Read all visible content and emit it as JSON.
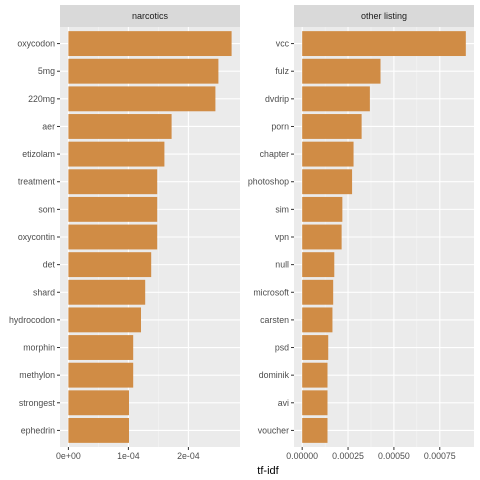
{
  "chart_data": [
    {
      "type": "bar",
      "orientation": "horizontal",
      "facet_label": "narcotics",
      "categories": [
        "oxycodon",
        "5mg",
        "220mg",
        "aer",
        "etizolam",
        "treatment",
        "som",
        "oxycontin",
        "det",
        "shard",
        "hydrocodon",
        "morphin",
        "methylon",
        "strongest",
        "ephedrin"
      ],
      "values": [
        0.000272,
        0.00025,
        0.000245,
        0.000172,
        0.00016,
        0.000148,
        0.000148,
        0.000148,
        0.000138,
        0.000128,
        0.000121,
        0.000108,
        0.000108,
        0.000101,
        0.000101
      ],
      "xlim": [
        -1.4e-05,
        0.000286
      ],
      "ticks": [
        0,
        0.0001,
        0.0002
      ],
      "tick_labels": [
        "0e+00",
        "1e-04",
        "2e-04"
      ]
    },
    {
      "type": "bar",
      "orientation": "horizontal",
      "facet_label": "other listing",
      "categories": [
        "vcc",
        "fulz",
        "dvdrip",
        "porn",
        "chapter",
        "photoshop",
        "sim",
        "vpn",
        "null",
        "microsoft",
        "carsten",
        "psd",
        "dominik",
        "avi",
        "voucher"
      ],
      "values": [
        0.000892,
        0.000427,
        0.000369,
        0.000324,
        0.00028,
        0.000272,
        0.000219,
        0.000215,
        0.000175,
        0.000169,
        0.000165,
        0.000142,
        0.000138,
        0.000138,
        0.000138
      ],
      "xlim": [
        -4.46e-05,
        0.0009366
      ],
      "ticks": [
        0,
        0.00025,
        0.0005,
        0.00075
      ],
      "tick_labels": [
        "0.00000",
        "0.00025",
        "0.00050",
        "0.00075"
      ]
    }
  ],
  "xlabel": "tf-idf",
  "colors": {
    "bar": "#D08C45",
    "panel_bg": "#EBEBEB",
    "strip_bg": "#D9D9D9",
    "grid_major": "#FFFFFF",
    "grid_minor": "#F5F5F5",
    "text": "#4D4D4D",
    "strip_text": "#1A1A1A"
  }
}
